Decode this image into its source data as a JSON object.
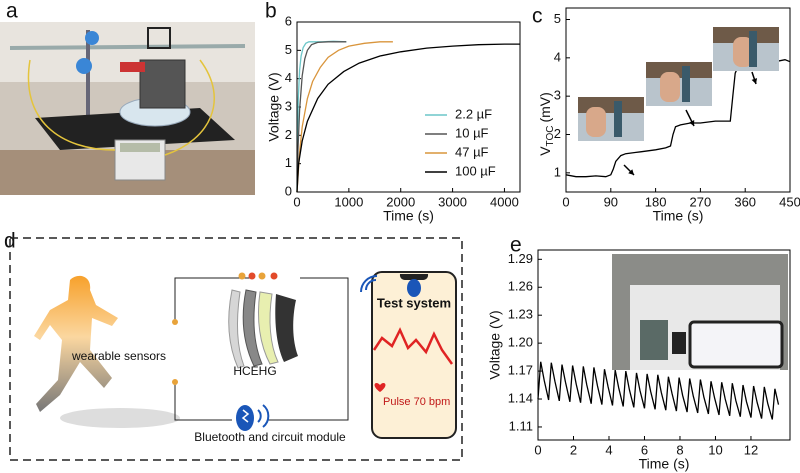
{
  "panel_labels": [
    "a",
    "b",
    "c",
    "d",
    "e"
  ],
  "diagram": {
    "sensors": "wearable sensors",
    "device": "HCEHG",
    "module": "Bluetooth and circuit module",
    "phone_title": "Test system",
    "pulse": "Pulse 70 bpm"
  },
  "chart_data": [
    {
      "type": "line",
      "xlabel": "Time (s)",
      "ylabel": "Voltage (V)",
      "xlim": [
        0,
        4300
      ],
      "ylim": [
        0,
        6
      ],
      "xticks": [
        0,
        1000,
        2000,
        3000,
        4000
      ],
      "yticks": [
        0,
        1,
        2,
        3,
        4,
        5,
        6
      ],
      "legend": "lower right",
      "series": [
        {
          "name": "2.2 µF",
          "color": "#6cc6c8",
          "x": [
            0,
            10,
            25,
            50,
            80,
            120,
            170,
            230,
            300,
            500,
            700,
            950
          ],
          "values": [
            0,
            1.8,
            3.3,
            4.3,
            4.8,
            5.1,
            5.25,
            5.3,
            5.3,
            5.3,
            5.32,
            5.3
          ]
        },
        {
          "name": "10 µF",
          "color": "#555555",
          "x": [
            0,
            20,
            50,
            100,
            150,
            200,
            280,
            400,
            600,
            800,
            950
          ],
          "values": [
            0,
            1.5,
            2.9,
            4.1,
            4.7,
            5.0,
            5.2,
            5.28,
            5.3,
            5.3,
            5.3
          ]
        },
        {
          "name": "47 µF",
          "color": "#d9953c",
          "x": [
            0,
            50,
            100,
            200,
            300,
            450,
            600,
            800,
            1000,
            1300,
            1600,
            1850
          ],
          "values": [
            0,
            1.4,
            2.3,
            3.3,
            3.9,
            4.4,
            4.75,
            5.0,
            5.15,
            5.25,
            5.3,
            5.3
          ]
        },
        {
          "name": "100 µF",
          "color": "#000000",
          "x": [
            0,
            30,
            100,
            200,
            400,
            600,
            900,
            1200,
            1600,
            2000,
            2500,
            3000,
            3500,
            4000,
            4300
          ],
          "values": [
            0,
            1.0,
            1.8,
            2.5,
            3.3,
            3.8,
            4.25,
            4.55,
            4.8,
            4.95,
            5.08,
            5.15,
            5.2,
            5.22,
            5.22
          ]
        }
      ]
    },
    {
      "type": "line",
      "xlabel": "Time (s)",
      "ylabel": {
        "main": "V",
        "sub": "TOC",
        "unit": "(mV)"
      },
      "xlim": [
        0,
        450
      ],
      "ylim": [
        0.5,
        5.3
      ],
      "xticks": [
        0,
        90,
        180,
        270,
        360,
        450
      ],
      "yticks": [
        1,
        2,
        3,
        4,
        5
      ],
      "series": [
        {
          "color": "#000000",
          "x": [
            0,
            20,
            40,
            60,
            80,
            90,
            95,
            100,
            110,
            120,
            150,
            180,
            200,
            210,
            215,
            220,
            230,
            250,
            270,
            300,
            330,
            335,
            340,
            345,
            360,
            380,
            400,
            420,
            440,
            450
          ],
          "values": [
            0.95,
            0.9,
            0.9,
            0.92,
            0.9,
            0.95,
            1.1,
            1.3,
            1.45,
            1.5,
            1.55,
            1.6,
            1.65,
            1.7,
            2.0,
            2.2,
            2.25,
            2.3,
            2.3,
            2.35,
            2.35,
            3.0,
            3.6,
            3.75,
            3.8,
            3.9,
            3.85,
            3.9,
            3.95,
            3.9
          ]
        }
      ]
    },
    {
      "type": "line",
      "xlabel": "Time (s)",
      "ylabel": "Voltage (V)",
      "xlim": [
        0,
        14.2
      ],
      "ylim": [
        1.096,
        1.3
      ],
      "xticks": [
        0,
        2,
        4,
        6,
        8,
        10,
        12
      ],
      "yticks": [
        1.11,
        1.14,
        1.17,
        {
          "value": 1.2,
          "label": "1.20"
        },
        1.23,
        1.26,
        1.29
      ],
      "series": [
        {
          "color": "#000000",
          "x": [
            0,
            0.15,
            0.35,
            0.6,
            0.75,
            0.95,
            1.2,
            1.35,
            1.55,
            1.8,
            1.95,
            2.15,
            2.4,
            2.55,
            2.75,
            3.0,
            3.15,
            3.35,
            3.6,
            3.75,
            3.95,
            4.2,
            4.35,
            4.55,
            4.8,
            4.95,
            5.15,
            5.4,
            5.55,
            5.75,
            6.0,
            6.15,
            6.35,
            6.6,
            6.75,
            6.95,
            7.2,
            7.35,
            7.55,
            7.8,
            7.95,
            8.15,
            8.4,
            8.55,
            8.75,
            9.0,
            9.15,
            9.35,
            9.6,
            9.75,
            9.95,
            10.2,
            10.35,
            10.55,
            10.8,
            10.95,
            11.15,
            11.4,
            11.55,
            11.75,
            12.0,
            12.15,
            12.35,
            12.6,
            12.75,
            12.95,
            13.2,
            13.35,
            13.55
          ],
          "values": [
            1.14,
            1.18,
            1.16,
            1.139,
            1.179,
            1.159,
            1.138,
            1.177,
            1.158,
            1.137,
            1.176,
            1.156,
            1.136,
            1.175,
            1.155,
            1.135,
            1.174,
            1.154,
            1.134,
            1.172,
            1.153,
            1.133,
            1.171,
            1.152,
            1.132,
            1.17,
            1.15,
            1.131,
            1.168,
            1.149,
            1.13,
            1.167,
            1.148,
            1.129,
            1.166,
            1.147,
            1.128,
            1.164,
            1.146,
            1.127,
            1.163,
            1.144,
            1.126,
            1.162,
            1.143,
            1.125,
            1.161,
            1.142,
            1.124,
            1.159,
            1.141,
            1.123,
            1.158,
            1.14,
            1.122,
            1.157,
            1.138,
            1.121,
            1.155,
            1.137,
            1.12,
            1.154,
            1.136,
            1.119,
            1.153,
            1.135,
            1.118,
            1.151,
            1.134
          ]
        }
      ]
    }
  ]
}
